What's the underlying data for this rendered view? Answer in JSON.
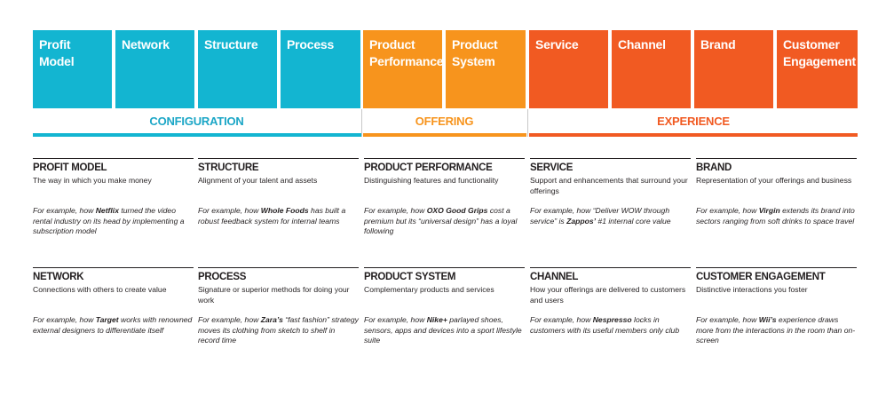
{
  "tiles": [
    {
      "label": "Profit\nModel",
      "group": "configuration"
    },
    {
      "label": "Network",
      "group": "configuration"
    },
    {
      "label": "Structure",
      "group": "configuration"
    },
    {
      "label": "Process",
      "group": "configuration"
    },
    {
      "label": "Product\nPerformance",
      "group": "offering"
    },
    {
      "label": "Product\nSystem",
      "group": "offering"
    },
    {
      "label": "Service",
      "group": "experience"
    },
    {
      "label": "Channel",
      "group": "experience"
    },
    {
      "label": "Brand",
      "group": "experience"
    },
    {
      "label": "Customer\nEngagement",
      "group": "experience"
    }
  ],
  "groups": {
    "configuration": {
      "label": "CONFIGURATION",
      "color": "#13b5d1",
      "text_color": "#1ba6c6"
    },
    "offering": {
      "label": "OFFERING",
      "color": "#f7941d",
      "text_color": "#f7941d"
    },
    "experience": {
      "label": "EXPERIENCE",
      "color": "#f15a22",
      "text_color": "#f15a22"
    }
  },
  "cells": [
    {
      "title": "PROFIT MODEL",
      "desc": "The way in which you make money",
      "ex_pre": "For example, how ",
      "ex_bold": "Netflix",
      "ex_post": " turned the video rental industry on its head by implementing a subscription model"
    },
    {
      "title": "STRUCTURE",
      "desc": "Alignment of your talent and assets",
      "ex_pre": "For example, how ",
      "ex_bold": "Whole Foods",
      "ex_post": " has built a robust feedback system for internal teams"
    },
    {
      "title": "PRODUCT PERFORMANCE",
      "desc": "Distinguishing features and functionality",
      "ex_pre": "For example, how ",
      "ex_bold": "OXO Good Grips",
      "ex_post": " cost a premium but its “universal design” has a loyal following"
    },
    {
      "title": "SERVICE",
      "desc": "Support and enhancements that surround your offerings",
      "ex_pre": "For example, how “Deliver WOW through service” is ",
      "ex_bold": "Zappos’",
      "ex_post": " #1 internal core value"
    },
    {
      "title": "BRAND",
      "desc": "Representation of your offerings and business",
      "ex_pre": "For example, how ",
      "ex_bold": "Virgin",
      "ex_post": " extends its brand into sectors ranging from soft drinks to space travel"
    },
    {
      "title": "NETWORK",
      "desc": "Connections with others to create value",
      "ex_pre": "For example, how ",
      "ex_bold": "Target",
      "ex_post": " works with renowned external designers to differentiate itself"
    },
    {
      "title": "PROCESS",
      "desc": "Signature or superior methods for doing your work",
      "ex_pre": "For example, how ",
      "ex_bold": "Zara’s",
      "ex_post": " “fast fashion” strategy moves its clothing from sketch to shelf in record time"
    },
    {
      "title": "PRODUCT SYSTEM",
      "desc": "Complementary products and services",
      "ex_pre": "For example, how ",
      "ex_bold": "Nike+",
      "ex_post": " parlayed shoes, sensors, apps and devices into a sport lifestyle suite"
    },
    {
      "title": "CHANNEL",
      "desc": "How your offerings are delivered to customers and users",
      "ex_pre": "For example, how ",
      "ex_bold": "Nespresso",
      "ex_post": " locks in customers with its useful members only club"
    },
    {
      "title": "CUSTOMER ENGAGEMENT",
      "desc": "Distinctive interactions you foster",
      "ex_pre": "For example, how ",
      "ex_bold": "Wii’s",
      "ex_post": " experience draws more from the interactions in the room than on-screen"
    }
  ]
}
